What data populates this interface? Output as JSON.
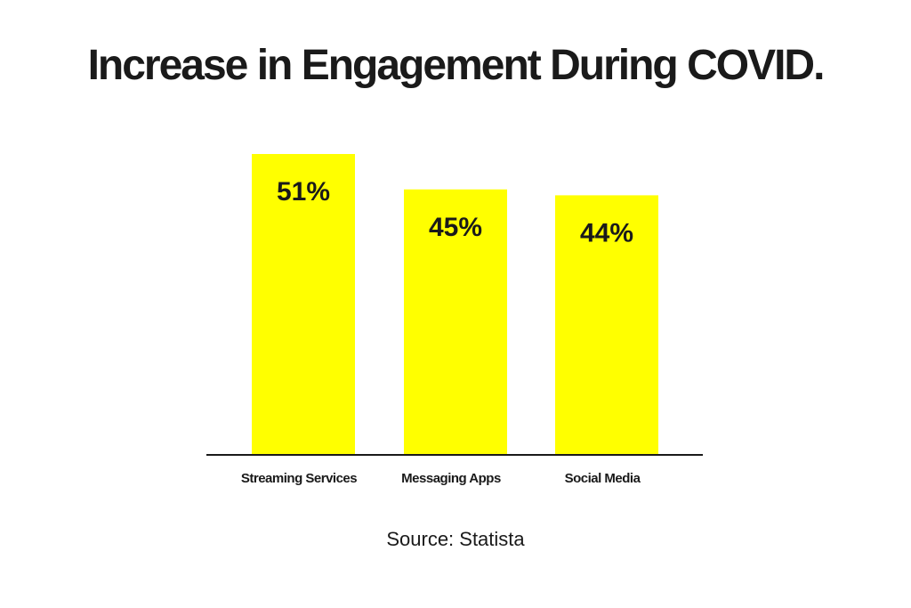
{
  "colors": {
    "bar": "#ffff00",
    "text": "#1a1a1a",
    "axis": "#1a1a1a",
    "background": "#ffffff"
  },
  "chart_data": {
    "type": "bar",
    "title": "Increase in Engagement During COVID.",
    "categories": [
      "Streaming Services",
      "Messaging Apps",
      "Social Media"
    ],
    "values": [
      51,
      45,
      44
    ],
    "value_labels": [
      "51%",
      "45%",
      "44%"
    ],
    "xlabel": "",
    "ylabel": "",
    "ylim": [
      0,
      56
    ],
    "grid": false,
    "legend": "none"
  },
  "source": "Source: Statista"
}
